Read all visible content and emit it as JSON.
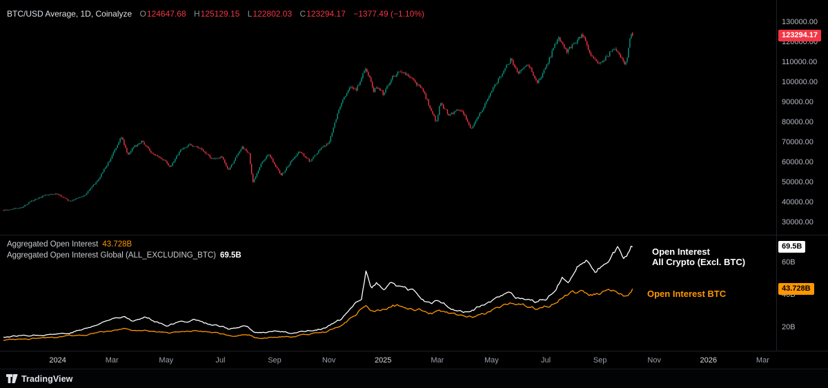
{
  "header": {
    "symbol_line": "BTC/USD Average, 1D, Coinalyze",
    "ohlc": [
      {
        "key": "O",
        "value": "124647.68"
      },
      {
        "key": "H",
        "value": "125129.15"
      },
      {
        "key": "L",
        "value": "122802.03"
      },
      {
        "key": "C",
        "value": "123294.17"
      }
    ],
    "change": "−1377.49 (−1.10%)"
  },
  "price_scale": {
    "badge": "123294.17"
  },
  "oi_pane": {
    "legend1_label": "Aggregated Open Interest",
    "legend1_value": "43.728B",
    "legend2_label": "Aggregated Open Interest Global (ALL_EXCLUDING_BTC)",
    "legend2_value": "69.5B",
    "label_line1": "Open Interest",
    "label_line2": "All Crypto (Excl. BTC)",
    "label_btc": "Open Interest BTC",
    "badge_white": "69.5B",
    "badge_orange": "43.728B"
  },
  "time_axis": {
    "ticks": [
      {
        "label": "2024",
        "m": 2,
        "year": true
      },
      {
        "label": "Mar",
        "m": 4
      },
      {
        "label": "May",
        "m": 6
      },
      {
        "label": "Jul",
        "m": 8
      },
      {
        "label": "Sep",
        "m": 10
      },
      {
        "label": "Nov",
        "m": 12
      },
      {
        "label": "2025",
        "m": 14,
        "year": true
      },
      {
        "label": "Mar",
        "m": 16
      },
      {
        "label": "May",
        "m": 18
      },
      {
        "label": "Jul",
        "m": 20
      },
      {
        "label": "Sep",
        "m": 22
      },
      {
        "label": "Nov",
        "m": 24
      },
      {
        "label": "2026",
        "m": 26,
        "year": true
      },
      {
        "label": "Mar",
        "m": 28
      }
    ]
  },
  "toolbar": {
    "brand": "TradingView"
  },
  "chart_data": [
    {
      "type": "candlestick",
      "title": "BTC/USD Average, 1D, Coinalyze",
      "symbol": "BTC/USD Average",
      "interval": "1D",
      "source": "Coinalyze",
      "ohlc": {
        "open": 124647.68,
        "high": 125129.15,
        "low": 122802.03,
        "close": 123294.17,
        "change": -1377.49,
        "change_pct": -1.1
      },
      "ylim": [
        28000,
        132000
      ],
      "y_ticks": [
        130000,
        120000,
        110000,
        100000,
        90000,
        80000,
        70000,
        60000,
        50000,
        40000,
        30000
      ],
      "x_start_month": "2023-11",
      "x_end_month": "2025-10",
      "up_color": "#089981",
      "down_color": "#f23645",
      "series_keypoints_month_price": [
        [
          0,
          36000
        ],
        [
          0.7,
          37500
        ],
        [
          1.0,
          40500
        ],
        [
          1.6,
          43800
        ],
        [
          2.0,
          44200
        ],
        [
          2.45,
          40300
        ],
        [
          3.0,
          43500
        ],
        [
          3.5,
          51500
        ],
        [
          3.95,
          61800
        ],
        [
          4.35,
          72800
        ],
        [
          4.6,
          63500
        ],
        [
          4.8,
          67500
        ],
        [
          5.1,
          70500
        ],
        [
          5.5,
          64200
        ],
        [
          6.0,
          60200
        ],
        [
          6.15,
          57500
        ],
        [
          6.55,
          66500
        ],
        [
          6.9,
          68800
        ],
        [
          7.3,
          66500
        ],
        [
          7.7,
          61500
        ],
        [
          8.05,
          62800
        ],
        [
          8.3,
          55900
        ],
        [
          8.8,
          67800
        ],
        [
          9.05,
          64600
        ],
        [
          9.2,
          49900
        ],
        [
          9.5,
          59500
        ],
        [
          9.8,
          64200
        ],
        [
          10.05,
          57500
        ],
        [
          10.25,
          53500
        ],
        [
          10.9,
          65700
        ],
        [
          11.3,
          60500
        ],
        [
          11.75,
          67500
        ],
        [
          12.0,
          69500
        ],
        [
          12.4,
          88000
        ],
        [
          12.8,
          98500
        ],
        [
          13.0,
          95800
        ],
        [
          13.37,
          107300
        ],
        [
          13.65,
          95500
        ],
        [
          13.8,
          97500
        ],
        [
          14.0,
          94300
        ],
        [
          14.35,
          102500
        ],
        [
          14.65,
          106000
        ],
        [
          15.0,
          102100
        ],
        [
          15.45,
          96400
        ],
        [
          15.97,
          79800
        ],
        [
          16.1,
          89500
        ],
        [
          16.45,
          83500
        ],
        [
          16.8,
          86800
        ],
        [
          17.05,
          82500
        ],
        [
          17.25,
          76300
        ],
        [
          17.6,
          85000
        ],
        [
          17.95,
          94500
        ],
        [
          18.35,
          103500
        ],
        [
          18.7,
          111200
        ],
        [
          19.0,
          104600
        ],
        [
          19.35,
          108900
        ],
        [
          19.7,
          99400
        ],
        [
          20.0,
          107300
        ],
        [
          20.45,
          122500
        ],
        [
          20.75,
          115300
        ],
        [
          21.0,
          118500
        ],
        [
          21.35,
          124000
        ],
        [
          21.7,
          112800
        ],
        [
          21.95,
          108600
        ],
        [
          22.2,
          112000
        ],
        [
          22.55,
          117300
        ],
        [
          22.9,
          108900
        ],
        [
          23.0,
          112500
        ],
        [
          23.08,
          120500
        ],
        [
          23.14,
          124800
        ],
        [
          23.2,
          123294.17
        ]
      ]
    },
    {
      "type": "line",
      "title": "Aggregated Open Interest",
      "ylim": [
        5,
        75
      ],
      "y_ticks": [
        {
          "label": "60B",
          "value": 60
        },
        {
          "label": "40B",
          "value": 40
        },
        {
          "label": "20B",
          "value": 20
        }
      ],
      "series": [
        {
          "name": "Aggregated Open Interest Global (ALL_EXCLUDING_BTC)",
          "label": "Open Interest All Crypto (Excl. BTC)",
          "color": "#ffffff",
          "last_value": 69.5,
          "last_display": "69.5B",
          "keypoints_month_billions": [
            [
              0,
              14
            ],
            [
              0.8,
              15
            ],
            [
              1.6,
              16
            ],
            [
              2.4,
              16.5
            ],
            [
              3.2,
              20
            ],
            [
              4.0,
              25
            ],
            [
              4.45,
              28
            ],
            [
              4.8,
              24.5
            ],
            [
              5.3,
              26
            ],
            [
              6.0,
              22
            ],
            [
              6.6,
              23.5
            ],
            [
              7.1,
              25
            ],
            [
              7.6,
              22
            ],
            [
              8.3,
              19
            ],
            [
              9.0,
              20
            ],
            [
              9.25,
              16
            ],
            [
              10.0,
              17.5
            ],
            [
              10.6,
              16.5
            ],
            [
              11.2,
              18
            ],
            [
              11.9,
              20
            ],
            [
              12.4,
              24
            ],
            [
              12.9,
              32
            ],
            [
              13.2,
              38
            ],
            [
              13.37,
              56
            ],
            [
              13.55,
              44
            ],
            [
              13.75,
              47
            ],
            [
              14.0,
              43
            ],
            [
              14.3,
              49
            ],
            [
              14.7,
              44
            ],
            [
              15.1,
              41
            ],
            [
              15.6,
              35
            ],
            [
              16.1,
              36
            ],
            [
              16.6,
              31
            ],
            [
              17.1,
              29
            ],
            [
              17.6,
              33
            ],
            [
              18.1,
              37
            ],
            [
              18.6,
              39
            ],
            [
              19.1,
              36
            ],
            [
              19.6,
              34
            ],
            [
              20.0,
              38
            ],
            [
              20.3,
              44
            ],
            [
              20.6,
              52
            ],
            [
              20.9,
              50
            ],
            [
              21.2,
              57
            ],
            [
              21.5,
              61
            ],
            [
              21.8,
              54
            ],
            [
              22.1,
              58
            ],
            [
              22.4,
              66
            ],
            [
              22.65,
              71
            ],
            [
              22.85,
              62
            ],
            [
              23.0,
              64
            ],
            [
              23.2,
              69.5
            ]
          ]
        },
        {
          "name": "Aggregated Open Interest",
          "label": "Open Interest BTC",
          "color": "#ff9800",
          "last_value": 43.728,
          "last_display": "43.728B",
          "keypoints_month_billions": [
            [
              0,
              12
            ],
            [
              1,
              13
            ],
            [
              2,
              13.5
            ],
            [
              3,
              15
            ],
            [
              4,
              18
            ],
            [
              4.45,
              19.5
            ],
            [
              5,
              18
            ],
            [
              6,
              16.5
            ],
            [
              7,
              17.5
            ],
            [
              8,
              15.5
            ],
            [
              8.4,
              14.5
            ],
            [
              9.05,
              15
            ],
            [
              9.3,
              13
            ],
            [
              10,
              14
            ],
            [
              11,
              15
            ],
            [
              11.9,
              17
            ],
            [
              12.5,
              22
            ],
            [
              13.0,
              28
            ],
            [
              13.37,
              34
            ],
            [
              13.6,
              30.5
            ],
            [
              14.0,
              31
            ],
            [
              14.35,
              34
            ],
            [
              14.8,
              32.5
            ],
            [
              15.3,
              31
            ],
            [
              15.8,
              29
            ],
            [
              16.3,
              28.5
            ],
            [
              16.8,
              27
            ],
            [
              17.3,
              26.5
            ],
            [
              17.8,
              29
            ],
            [
              18.3,
              32
            ],
            [
              18.7,
              33.5
            ],
            [
              19.2,
              32.5
            ],
            [
              19.7,
              31.5
            ],
            [
              20.1,
              34
            ],
            [
              20.5,
              38
            ],
            [
              20.9,
              40
            ],
            [
              21.3,
              42
            ],
            [
              21.6,
              41
            ],
            [
              21.9,
              40.5
            ],
            [
              22.2,
              41.5
            ],
            [
              22.5,
              42
            ],
            [
              22.8,
              40.5
            ],
            [
              23.05,
              40
            ],
            [
              23.2,
              43.728
            ]
          ]
        }
      ]
    }
  ]
}
